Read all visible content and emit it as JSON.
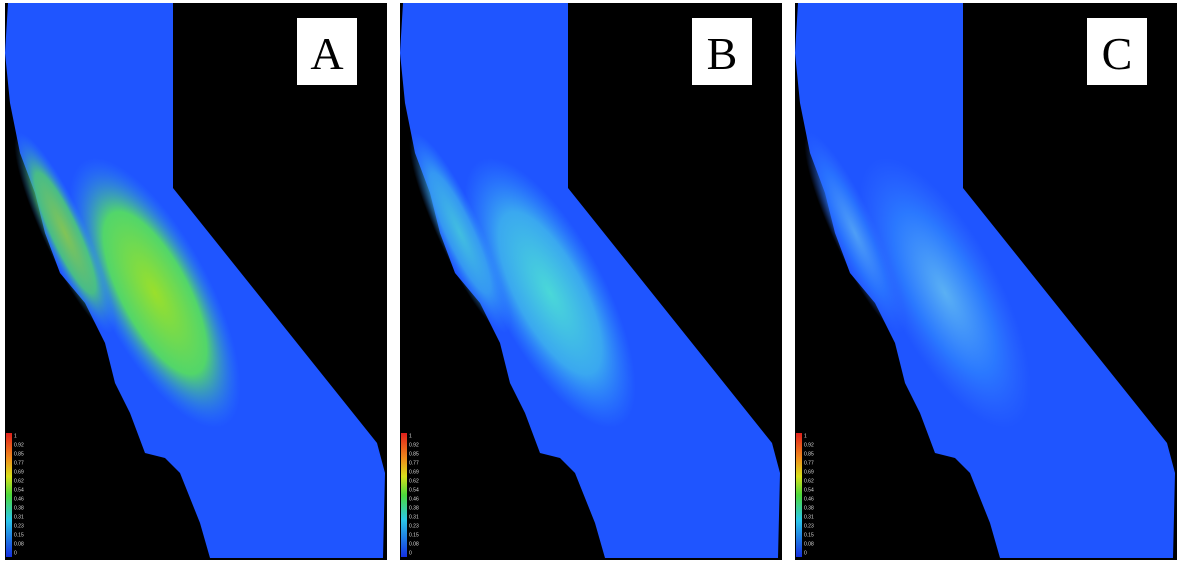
{
  "panels": [
    {
      "label": "A"
    },
    {
      "label": "B"
    },
    {
      "label": "C"
    }
  ],
  "legend": [
    "1",
    "0.92",
    "0.85",
    "0.77",
    "0.69",
    "0.62",
    "0.54",
    "0.46",
    "0.38",
    "0.31",
    "0.23",
    "0.15",
    "0.08",
    "0"
  ]
}
